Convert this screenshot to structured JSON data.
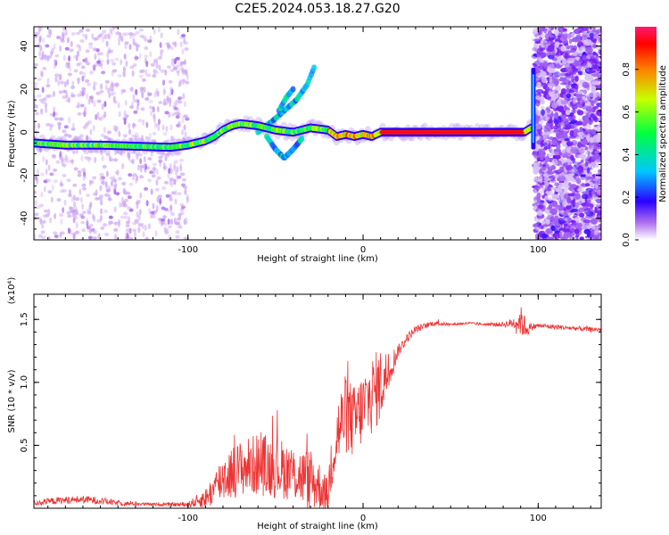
{
  "title": "C2E5.2024.053.18.27.G20",
  "chart_data": [
    {
      "type": "heatmap",
      "xlabel": "Height of straight line (km)",
      "ylabel": "Frequency (Hz)",
      "xlim": [
        -188,
        136
      ],
      "ylim": [
        -50,
        49
      ],
      "xticks": [
        -100,
        0,
        100
      ],
      "yticks": [
        -40,
        -20,
        0,
        20,
        40
      ],
      "grid": false,
      "ridge": {
        "x": [
          -188,
          -170,
          -150,
          -130,
          -110,
          -100,
          -90,
          -85,
          -80,
          -75,
          -70,
          -60,
          -50,
          -40,
          -30,
          -20,
          -15,
          -10,
          -5,
          0,
          5,
          10,
          20,
          40,
          60,
          80,
          92,
          96
        ],
        "y": [
          -5,
          -6,
          -6,
          -6.5,
          -7,
          -6,
          -4,
          -2,
          1,
          3,
          4,
          3,
          1,
          0,
          2,
          1,
          -2,
          -1,
          -2,
          -1,
          -2,
          0,
          0,
          0,
          0,
          0,
          0,
          2
        ]
      },
      "branches": [
        {
          "x": [
            -60,
            -52,
            -45,
            -38,
            -32,
            -28
          ],
          "y": [
            0,
            5,
            10,
            15,
            22,
            30
          ]
        },
        {
          "x": [
            -55,
            -50,
            -45,
            -40,
            -35
          ],
          "y": [
            -2,
            -8,
            -12,
            -8,
            -3
          ]
        },
        {
          "x": [
            -48,
            -44,
            -40
          ],
          "y": [
            10,
            16,
            20
          ]
        }
      ],
      "bands": {
        "low_x": [
          -188,
          -100
        ],
        "high_x": [
          98,
          136
        ]
      },
      "colorbar": {
        "label": "Normalized spectral amplitude",
        "ticks": [
          "0.0",
          "0.2",
          "0.4",
          "0.6",
          "0.8"
        ],
        "range": [
          0,
          1
        ]
      }
    },
    {
      "type": "line",
      "xlabel": "Height of straight line (km)",
      "ylabel": "SNR (10 * v/v)",
      "multiplier": "(x10⁴)",
      "xlim": [
        -188,
        136
      ],
      "ylim": [
        0,
        1.7
      ],
      "xticks": [
        -100,
        0,
        100
      ],
      "yticks": [
        0.5,
        1.0,
        1.5
      ],
      "color": "#ee3333",
      "series": [
        {
          "x": [
            -188,
            -175,
            -160,
            -150,
            -140,
            -120,
            -100,
            -90,
            -85,
            -80,
            -70,
            -60,
            -50,
            -40,
            -30,
            -25,
            -20,
            -18,
            -15,
            -10,
            -5,
            0,
            5,
            10,
            15,
            20,
            25,
            30,
            40,
            50,
            60,
            70,
            80,
            85,
            88,
            90,
            92,
            94,
            96,
            100,
            110,
            120,
            130,
            136
          ],
          "y": [
            0.04,
            0.06,
            0.07,
            0.06,
            0.04,
            0.03,
            0.03,
            0.08,
            0.15,
            0.25,
            0.32,
            0.35,
            0.33,
            0.28,
            0.22,
            0.18,
            0.1,
            0.42,
            0.58,
            0.75,
            0.68,
            0.8,
            0.9,
            0.98,
            1.1,
            1.25,
            1.35,
            1.42,
            1.47,
            1.46,
            1.47,
            1.46,
            1.46,
            1.47,
            1.48,
            1.49,
            1.45,
            1.42,
            1.44,
            1.45,
            1.44,
            1.43,
            1.42,
            1.42
          ],
          "noise": [
            0.02,
            0.03,
            0.03,
            0.03,
            0.02,
            0.01,
            0.02,
            0.08,
            0.14,
            0.2,
            0.22,
            0.25,
            0.25,
            0.22,
            0.25,
            0.2,
            0.12,
            0.3,
            0.3,
            0.32,
            0.3,
            0.3,
            0.32,
            0.3,
            0.15,
            0.05,
            0.04,
            0.03,
            0.02,
            0.01,
            0.01,
            0.01,
            0.02,
            0.04,
            0.08,
            0.12,
            0.1,
            0.05,
            0.03,
            0.02,
            0.02,
            0.02,
            0.02,
            0.02
          ]
        }
      ]
    }
  ]
}
